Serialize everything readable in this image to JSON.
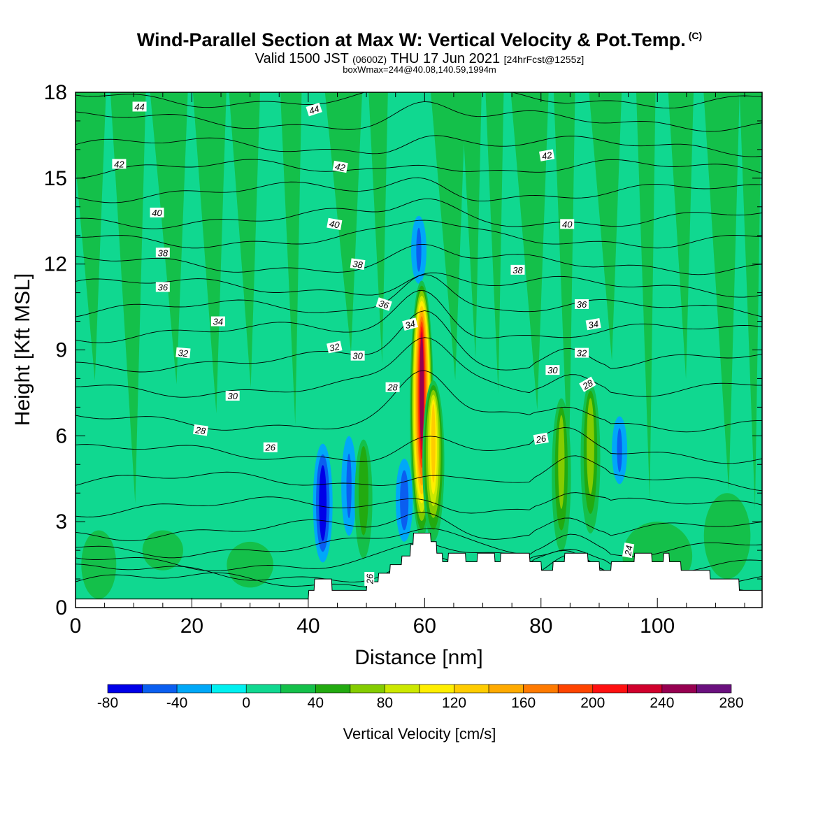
{
  "header": {
    "title": "Wind-Parallel Section at Max W: Vertical Velocity & Pot.Temp.",
    "title_mark": "(C)",
    "valid_prefix": "Valid 1500 JST",
    "valid_utc": "(0600Z)",
    "valid_date": "THU 17 Jun 2021",
    "forecast_info": "[24hrFcst@1255z]",
    "boxwmax": "boxWmax=244@40.08,140.59,1994m"
  },
  "chart_data": {
    "type": "heatmap",
    "title": "Wind-Parallel Section at Max W: Vertical Velocity & Pot.Temp.",
    "xlabel": "Distance [nm]",
    "ylabel": "Height [Kft MSL]",
    "xlim": [
      0,
      118
    ],
    "ylim": [
      0,
      18
    ],
    "x_ticks": [
      0,
      20,
      40,
      60,
      80,
      100
    ],
    "y_ticks": [
      0,
      3,
      6,
      9,
      12,
      15,
      18
    ],
    "colorbar": {
      "label": "Vertical Velocity [cm/s]",
      "tick_labels": [
        "-80",
        "-40",
        "0",
        "40",
        "80",
        "120",
        "160",
        "200",
        "240",
        "280"
      ],
      "levels": [
        -80,
        -60,
        -40,
        -20,
        0,
        20,
        40,
        60,
        80,
        100,
        120,
        140,
        160,
        180,
        200,
        220,
        240,
        260,
        280
      ],
      "colors": [
        "#0000e8",
        "#0a5ef0",
        "#00a8f8",
        "#00f0f0",
        "#10d890",
        "#14c04a",
        "#22aa10",
        "#84cc00",
        "#cce800",
        "#ffee00",
        "#ffcc00",
        "#ffaa00",
        "#ff7a00",
        "#ff4400",
        "#ff1010",
        "#d0002c",
        "#960050",
        "#6a107e"
      ]
    },
    "updrafts": [
      {
        "x": 59.5,
        "z_base": 2.7,
        "z_top": 11.0,
        "w_max": 244
      },
      {
        "x": 61.5,
        "z_base": 2.5,
        "z_top": 7.5,
        "w_max": 130
      },
      {
        "x": 49.5,
        "z_base": 1.5,
        "z_top": 5.5,
        "w_max": 55
      },
      {
        "x": 83.5,
        "z_base": 1.8,
        "z_top": 7.0,
        "w_max": 70
      },
      {
        "x": 88.5,
        "z_base": 2.5,
        "z_top": 7.5,
        "w_max": 75
      }
    ],
    "downdrafts": [
      {
        "x": 42.5,
        "z_base": 1.8,
        "z_top": 5.5,
        "w_min": -75
      },
      {
        "x": 56.5,
        "z_base": 2.5,
        "z_top": 5.0,
        "w_min": -50
      },
      {
        "x": 47.0,
        "z_base": 2.5,
        "z_top": 6.0,
        "w_min": -40
      },
      {
        "x": 93.5,
        "z_base": 4.5,
        "z_top": 6.5,
        "w_min": -40
      },
      {
        "x": 59.0,
        "z_base": 11.5,
        "z_top": 13.5,
        "w_min": -40
      }
    ],
    "terrain": [
      [
        0,
        0.3
      ],
      [
        40,
        0.3
      ],
      [
        40.1,
        0.6
      ],
      [
        41,
        0.6
      ],
      [
        41.1,
        1.0
      ],
      [
        44,
        1.0
      ],
      [
        44.1,
        0.6
      ],
      [
        50,
        0.6
      ],
      [
        50.1,
        0.9
      ],
      [
        52,
        0.9
      ],
      [
        52.1,
        1.2
      ],
      [
        54,
        1.2
      ],
      [
        54.1,
        1.5
      ],
      [
        56,
        1.5
      ],
      [
        56.1,
        1.8
      ],
      [
        57.5,
        1.8
      ],
      [
        57.6,
        2.2
      ],
      [
        58,
        2.2
      ],
      [
        58.1,
        2.6
      ],
      [
        61,
        2.6
      ],
      [
        61.1,
        2.3
      ],
      [
        62,
        2.3
      ],
      [
        62.1,
        1.9
      ],
      [
        63,
        1.9
      ],
      [
        63.1,
        1.6
      ],
      [
        64,
        1.6
      ],
      [
        64.1,
        1.9
      ],
      [
        67,
        1.9
      ],
      [
        67.1,
        1.6
      ],
      [
        69,
        1.6
      ],
      [
        69.1,
        1.9
      ],
      [
        72,
        1.9
      ],
      [
        72.1,
        1.6
      ],
      [
        73,
        1.6
      ],
      [
        73.1,
        1.9
      ],
      [
        78,
        1.9
      ],
      [
        78.1,
        1.6
      ],
      [
        80,
        1.6
      ],
      [
        80.1,
        1.3
      ],
      [
        82,
        1.3
      ],
      [
        82.1,
        1.6
      ],
      [
        84,
        1.6
      ],
      [
        84.1,
        1.9
      ],
      [
        88,
        1.9
      ],
      [
        88.1,
        1.6
      ],
      [
        90,
        1.6
      ],
      [
        90.1,
        1.3
      ],
      [
        92,
        1.3
      ],
      [
        92.1,
        1.6
      ],
      [
        96,
        1.6
      ],
      [
        96.1,
        1.9
      ],
      [
        99,
        1.9
      ],
      [
        99.1,
        1.6
      ],
      [
        101,
        1.6
      ],
      [
        101.1,
        1.9
      ],
      [
        102,
        1.9
      ],
      [
        102.1,
        1.6
      ],
      [
        104,
        1.6
      ],
      [
        104.1,
        1.3
      ],
      [
        109,
        1.3
      ],
      [
        109.1,
        1.0
      ],
      [
        114,
        1.0
      ],
      [
        114.1,
        0.6
      ],
      [
        118,
        0.6
      ]
    ],
    "theta_contours": [
      24,
      26,
      28,
      30,
      32,
      34,
      36,
      38,
      40,
      42,
      44
    ],
    "contour_labels": [
      {
        "text": "44",
        "x": 11,
        "z": 17.5,
        "rot": 0
      },
      {
        "text": "44",
        "x": 41,
        "z": 17.4,
        "rot": -18
      },
      {
        "text": "42",
        "x": 7.5,
        "z": 15.5,
        "rot": 0
      },
      {
        "text": "42",
        "x": 45.5,
        "z": 15.4,
        "rot": 10
      },
      {
        "text": "42",
        "x": 81,
        "z": 15.8,
        "rot": -10
      },
      {
        "text": "40",
        "x": 14,
        "z": 13.8,
        "rot": 0
      },
      {
        "text": "40",
        "x": 44.5,
        "z": 13.4,
        "rot": 10
      },
      {
        "text": "40",
        "x": 84.5,
        "z": 13.4,
        "rot": 0
      },
      {
        "text": "38",
        "x": 15,
        "z": 12.4,
        "rot": 0
      },
      {
        "text": "38",
        "x": 48.5,
        "z": 12.0,
        "rot": 8
      },
      {
        "text": "38",
        "x": 76,
        "z": 11.8,
        "rot": 0
      },
      {
        "text": "36",
        "x": 15,
        "z": 11.2,
        "rot": 0
      },
      {
        "text": "36",
        "x": 53,
        "z": 10.6,
        "rot": 18
      },
      {
        "text": "36",
        "x": 87,
        "z": 10.6,
        "rot": 0
      },
      {
        "text": "34",
        "x": 24.5,
        "z": 10.0,
        "rot": 0
      },
      {
        "text": "34",
        "x": 57.5,
        "z": 9.9,
        "rot": -15
      },
      {
        "text": "34",
        "x": 89,
        "z": 9.9,
        "rot": -10
      },
      {
        "text": "32",
        "x": 18.5,
        "z": 8.9,
        "rot": 5
      },
      {
        "text": "32",
        "x": 44.5,
        "z": 9.1,
        "rot": -12
      },
      {
        "text": "32",
        "x": 87,
        "z": 8.9,
        "rot": 0
      },
      {
        "text": "30",
        "x": 27,
        "z": 7.4,
        "rot": 0
      },
      {
        "text": "30",
        "x": 48.5,
        "z": 8.8,
        "rot": 0
      },
      {
        "text": "30",
        "x": 82,
        "z": 8.3,
        "rot": 0
      },
      {
        "text": "28",
        "x": 21.5,
        "z": 6.2,
        "rot": 8
      },
      {
        "text": "28",
        "x": 54.5,
        "z": 7.7,
        "rot": 0
      },
      {
        "text": "28",
        "x": 88,
        "z": 7.8,
        "rot": -30
      },
      {
        "text": "26",
        "x": 33.5,
        "z": 5.6,
        "rot": 0
      },
      {
        "text": "26",
        "x": 80,
        "z": 5.9,
        "rot": -10
      },
      {
        "text": "26",
        "x": 50.5,
        "z": 1.0,
        "rot": -90
      },
      {
        "text": "24",
        "x": 95,
        "z": 2.0,
        "rot": -80
      }
    ]
  }
}
